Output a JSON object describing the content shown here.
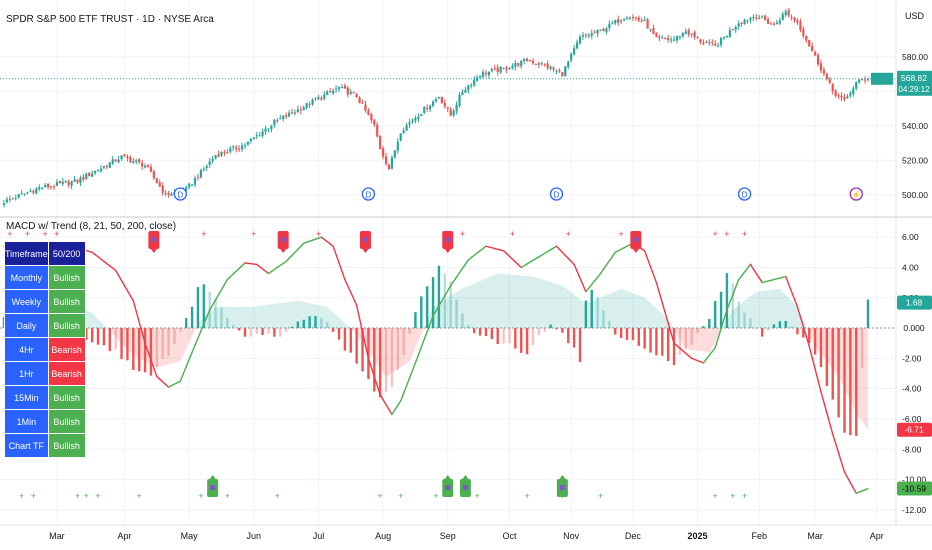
{
  "header": {
    "symbol_title": "SPDR S&P 500 ETF TRUST · 1D · NYSE Arca",
    "indicator_title": "MACD w/ Trend (8, 21, 50, 200, close)"
  },
  "colors": {
    "up": "#26a69a",
    "down": "#ef5350",
    "macd_up": "#4caf50",
    "macd_down": "#f23645",
    "table_header": "#1a1f9a",
    "table_label": "#2962ff",
    "bull": "#4caf50",
    "bear": "#f23645",
    "dividend": "#2962ff",
    "split": "#9c27b0"
  },
  "chart_data": [
    {
      "type": "candlestick",
      "title": "SPDR S&P 500 ETF TRUST · 1D · NYSE Arca",
      "currency_label": "USD",
      "x_tick_labels": [
        "Mar",
        "Apr",
        "May",
        "Jun",
        "Jul",
        "Aug",
        "Sep",
        "Oct",
        "Nov",
        "Dec",
        "2025",
        "Feb",
        "Mar",
        "Apr"
      ],
      "x_tick_index": [
        18,
        41,
        63,
        85,
        107,
        129,
        151,
        172,
        193,
        214,
        236,
        257,
        276,
        297
      ],
      "y_ticks": [
        500,
        520,
        540,
        560,
        580
      ],
      "ylim": [
        490,
        610
      ],
      "price_anchors": [
        [
          0,
          496
        ],
        [
          12,
          504
        ],
        [
          25,
          508
        ],
        [
          40,
          522
        ],
        [
          48,
          517
        ],
        [
          55,
          500
        ],
        [
          62,
          503
        ],
        [
          72,
          523
        ],
        [
          82,
          529
        ],
        [
          92,
          542
        ],
        [
          103,
          552
        ],
        [
          114,
          562
        ],
        [
          120,
          557
        ],
        [
          126,
          540
        ],
        [
          128,
          527
        ],
        [
          131,
          515
        ],
        [
          135,
          537
        ],
        [
          140,
          545
        ],
        [
          148,
          557
        ],
        [
          152,
          546
        ],
        [
          156,
          560
        ],
        [
          162,
          570
        ],
        [
          170,
          573
        ],
        [
          178,
          578
        ],
        [
          184,
          575
        ],
        [
          190,
          570
        ],
        [
          196,
          591
        ],
        [
          203,
          595
        ],
        [
          212,
          604
        ],
        [
          218,
          600
        ],
        [
          222,
          590
        ],
        [
          228,
          590
        ],
        [
          232,
          595
        ],
        [
          236,
          590
        ],
        [
          242,
          586
        ],
        [
          250,
          600
        ],
        [
          256,
          604
        ],
        [
          262,
          598
        ],
        [
          266,
          606
        ],
        [
          270,
          600
        ],
        [
          276,
          580
        ],
        [
          282,
          560
        ],
        [
          286,
          554
        ],
        [
          290,
          565
        ],
        [
          294,
          568
        ]
      ],
      "last_price": "568.82",
      "countdown": "04:29:12",
      "markers": [
        {
          "type": "dividend",
          "label": "D",
          "index": 60
        },
        {
          "type": "dividend",
          "label": "D",
          "index": 124
        },
        {
          "type": "dividend",
          "label": "D",
          "index": 188
        },
        {
          "type": "dividend",
          "label": "D",
          "index": 252
        },
        {
          "type": "split",
          "label": "⚡",
          "index": 290
        }
      ]
    },
    {
      "type": "macd",
      "title": "MACD w/ Trend (8, 21, 50, 200, close)",
      "y_ticks": [
        6,
        4,
        2,
        0,
        -2,
        -4,
        -6,
        -8,
        -10,
        -12
      ],
      "ylim": [
        -12.8,
        7.0
      ],
      "macd_anchors": [
        [
          0,
          5.4
        ],
        [
          10,
          5.3
        ],
        [
          20,
          5.6
        ],
        [
          30,
          5.0
        ],
        [
          38,
          3.8
        ],
        [
          44,
          1.8
        ],
        [
          48,
          -1.0
        ],
        [
          52,
          -3.2
        ],
        [
          56,
          -3.9
        ],
        [
          60,
          -3.5
        ],
        [
          64,
          -1.6
        ],
        [
          70,
          1.2
        ],
        [
          76,
          3.2
        ],
        [
          82,
          4.3
        ],
        [
          86,
          4.2
        ],
        [
          90,
          3.6
        ],
        [
          96,
          4.4
        ],
        [
          102,
          5.6
        ],
        [
          108,
          6.0
        ],
        [
          112,
          5.4
        ],
        [
          116,
          3.2
        ],
        [
          120,
          1.5
        ],
        [
          124,
          -2.0
        ],
        [
          128,
          -4.4
        ],
        [
          132,
          -5.7
        ],
        [
          135,
          -4.8
        ],
        [
          140,
          -2.3
        ],
        [
          146,
          0.8
        ],
        [
          152,
          2.8
        ],
        [
          158,
          4.5
        ],
        [
          164,
          5.4
        ],
        [
          170,
          5.1
        ],
        [
          176,
          4.0
        ],
        [
          182,
          4.7
        ],
        [
          188,
          5.4
        ],
        [
          194,
          4.2
        ],
        [
          198,
          2.4
        ],
        [
          203,
          3.6
        ],
        [
          208,
          5.0
        ],
        [
          214,
          5.6
        ],
        [
          218,
          5.1
        ],
        [
          222,
          3.0
        ],
        [
          228,
          -1.0
        ],
        [
          234,
          -2.0
        ],
        [
          238,
          -2.3
        ],
        [
          242,
          -1.3
        ],
        [
          246,
          1.2
        ],
        [
          250,
          3.2
        ],
        [
          254,
          4.2
        ],
        [
          258,
          3.0
        ],
        [
          262,
          3.2
        ],
        [
          266,
          3.4
        ],
        [
          270,
          1.4
        ],
        [
          274,
          -1.2
        ],
        [
          278,
          -4.2
        ],
        [
          282,
          -7.0
        ],
        [
          286,
          -9.5
        ],
        [
          290,
          -10.9
        ],
        [
          294,
          -10.6
        ]
      ],
      "histogram_anchors": [
        [
          0,
          0.7
        ],
        [
          8,
          0.4
        ],
        [
          14,
          0.2
        ],
        [
          18,
          -0.4
        ],
        [
          24,
          -0.6
        ],
        [
          30,
          -0.9
        ],
        [
          38,
          -1.6
        ],
        [
          44,
          -2.6
        ],
        [
          50,
          -3.3
        ],
        [
          54,
          -2.2
        ],
        [
          58,
          -1.0
        ],
        [
          62,
          0.6
        ],
        [
          66,
          2.6
        ],
        [
          68,
          3.1
        ],
        [
          72,
          2.0
        ],
        [
          76,
          0.6
        ],
        [
          82,
          -0.6
        ],
        [
          88,
          -0.4
        ],
        [
          94,
          -0.5
        ],
        [
          100,
          0.4
        ],
        [
          106,
          0.8
        ],
        [
          110,
          0.4
        ],
        [
          114,
          -0.8
        ],
        [
          118,
          -1.8
        ],
        [
          122,
          -2.8
        ],
        [
          128,
          -4.8
        ],
        [
          132,
          -3.8
        ],
        [
          136,
          -2.0
        ],
        [
          140,
          1.0
        ],
        [
          146,
          3.6
        ],
        [
          148,
          4.2
        ],
        [
          152,
          3.0
        ],
        [
          156,
          0.8
        ],
        [
          160,
          -0.4
        ],
        [
          166,
          -0.8
        ],
        [
          172,
          -1.2
        ],
        [
          178,
          -1.8
        ],
        [
          182,
          -0.6
        ],
        [
          186,
          0.2
        ],
        [
          190,
          -0.4
        ],
        [
          194,
          -1.4
        ],
        [
          196,
          -2.4
        ],
        [
          198,
          1.6
        ],
        [
          200,
          2.6
        ],
        [
          204,
          1.2
        ],
        [
          208,
          -0.4
        ],
        [
          214,
          -0.8
        ],
        [
          218,
          -1.4
        ],
        [
          222,
          -1.6
        ],
        [
          228,
          -2.6
        ],
        [
          232,
          -1.4
        ],
        [
          236,
          -0.4
        ],
        [
          240,
          0.6
        ],
        [
          244,
          2.6
        ],
        [
          246,
          3.6
        ],
        [
          250,
          1.8
        ],
        [
          254,
          0.6
        ],
        [
          258,
          -0.6
        ],
        [
          262,
          0.2
        ],
        [
          266,
          0.6
        ],
        [
          270,
          -0.4
        ],
        [
          274,
          -1.2
        ],
        [
          278,
          -2.8
        ],
        [
          282,
          -4.6
        ],
        [
          286,
          -6.8
        ],
        [
          290,
          -7.0
        ],
        [
          293,
          -0.4
        ],
        [
          294,
          1.68
        ]
      ],
      "signal_area_anchors": [
        [
          0,
          3.0
        ],
        [
          20,
          1.8
        ],
        [
          30,
          1.0
        ],
        [
          44,
          -1.8
        ],
        [
          52,
          -2.6
        ],
        [
          60,
          -2.2
        ],
        [
          66,
          0.3
        ],
        [
          72,
          1.4
        ],
        [
          84,
          1.4
        ],
        [
          100,
          1.8
        ],
        [
          110,
          1.4
        ],
        [
          120,
          -0.4
        ],
        [
          130,
          -3.2
        ],
        [
          138,
          -2.2
        ],
        [
          146,
          1.4
        ],
        [
          156,
          2.6
        ],
        [
          168,
          3.6
        ],
        [
          180,
          3.4
        ],
        [
          190,
          2.8
        ],
        [
          198,
          1.6
        ],
        [
          210,
          2.6
        ],
        [
          218,
          2.0
        ],
        [
          226,
          0.6
        ],
        [
          232,
          -1.4
        ],
        [
          240,
          -1.6
        ],
        [
          248,
          1.2
        ],
        [
          256,
          2.4
        ],
        [
          264,
          2.6
        ],
        [
          270,
          1.4
        ],
        [
          276,
          -1.2
        ],
        [
          284,
          -3.2
        ],
        [
          290,
          -5.6
        ],
        [
          294,
          -6.7
        ]
      ],
      "value_labels": {
        "histogram": "1.68",
        "zero": "0.000",
        "signal": "-6.71",
        "macd": "-10.59"
      },
      "value_label_levels": {
        "histogram": 1.68,
        "zero": 0,
        "signal": -6.71,
        "macd": -10.59
      },
      "sell_markers": [
        51,
        95,
        123,
        151,
        215
      ],
      "buy_markers": [
        71,
        151,
        157,
        190
      ],
      "sell_cross_markers": [
        2,
        8,
        14,
        18,
        68,
        85,
        107,
        122,
        156,
        173,
        192,
        210,
        242,
        246,
        252
      ],
      "buy_cross_markers": [
        6,
        10,
        25,
        28,
        32,
        46,
        67,
        76,
        93,
        128,
        135,
        147,
        161,
        178,
        190,
        203,
        242,
        248,
        252
      ]
    }
  ],
  "table": {
    "header": [
      "Timeframe",
      "50/200"
    ],
    "rows": [
      {
        "tf": "Monthly",
        "trend": "Bullish"
      },
      {
        "tf": "Weekly",
        "trend": "Bullish"
      },
      {
        "tf": "Daily",
        "trend": "Bullish"
      },
      {
        "tf": "4Hr",
        "trend": "Bearish"
      },
      {
        "tf": "1Hr",
        "trend": "Bearish"
      },
      {
        "tf": "15Min",
        "trend": "Bullish"
      },
      {
        "tf": "1Min",
        "trend": "Bullish"
      },
      {
        "tf": "Chart TF",
        "trend": "Bullish"
      }
    ]
  }
}
